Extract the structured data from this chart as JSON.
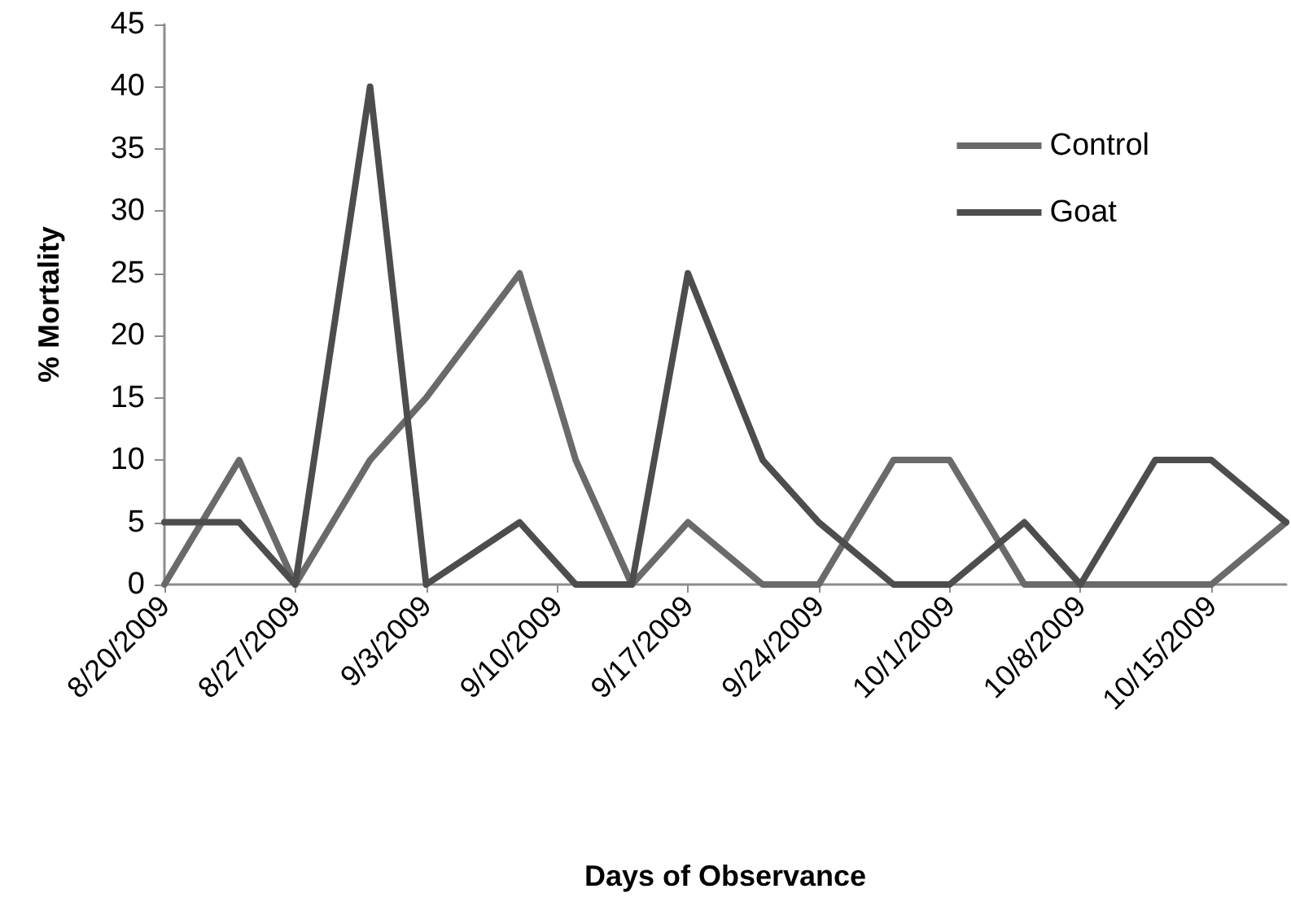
{
  "chart_data": {
    "type": "line",
    "xlabel": "Days of Observance",
    "ylabel": "% Mortality",
    "x": [
      "2009-08-20",
      "2009-08-24",
      "2009-08-27",
      "2009-08-31",
      "2009-09-03",
      "2009-09-08",
      "2009-09-11",
      "2009-09-14",
      "2009-09-17",
      "2009-09-21",
      "2009-09-24",
      "2009-09-28",
      "2009-10-01",
      "2009-10-05",
      "2009-10-08",
      "2009-10-12",
      "2009-10-15",
      "2009-10-19"
    ],
    "series": [
      {
        "name": "Control",
        "color": "#6a6a6a",
        "values": [
          0,
          10,
          0,
          10,
          15,
          25,
          10,
          0,
          5,
          0,
          0,
          10,
          10,
          0,
          0,
          0,
          0,
          5
        ]
      },
      {
        "name": "Goat",
        "color": "#4d4d4d",
        "values": [
          5,
          5,
          0,
          40,
          0,
          5,
          0,
          0,
          25,
          10,
          5,
          0,
          0,
          5,
          0,
          10,
          10,
          5
        ]
      }
    ],
    "xlim": [
      "2009-08-20",
      "2009-10-19"
    ],
    "xticks": [
      {
        "value": "2009-08-20",
        "label": "8/20/2009"
      },
      {
        "value": "2009-08-27",
        "label": "8/27/2009"
      },
      {
        "value": "2009-09-03",
        "label": "9/3/2009"
      },
      {
        "value": "2009-09-10",
        "label": "9/10/2009"
      },
      {
        "value": "2009-09-17",
        "label": "9/17/2009"
      },
      {
        "value": "2009-09-24",
        "label": "9/24/2009"
      },
      {
        "value": "2009-10-01",
        "label": "10/1/2009"
      },
      {
        "value": "2009-10-08",
        "label": "10/8/2009"
      },
      {
        "value": "2009-10-15",
        "label": "10/15/2009"
      }
    ],
    "ylim": [
      0,
      45
    ],
    "yticks": [
      0,
      5,
      10,
      15,
      20,
      25,
      30,
      35,
      40,
      45
    ],
    "grid": false,
    "legend": "top right",
    "marker": "none",
    "line_style": "solid"
  }
}
